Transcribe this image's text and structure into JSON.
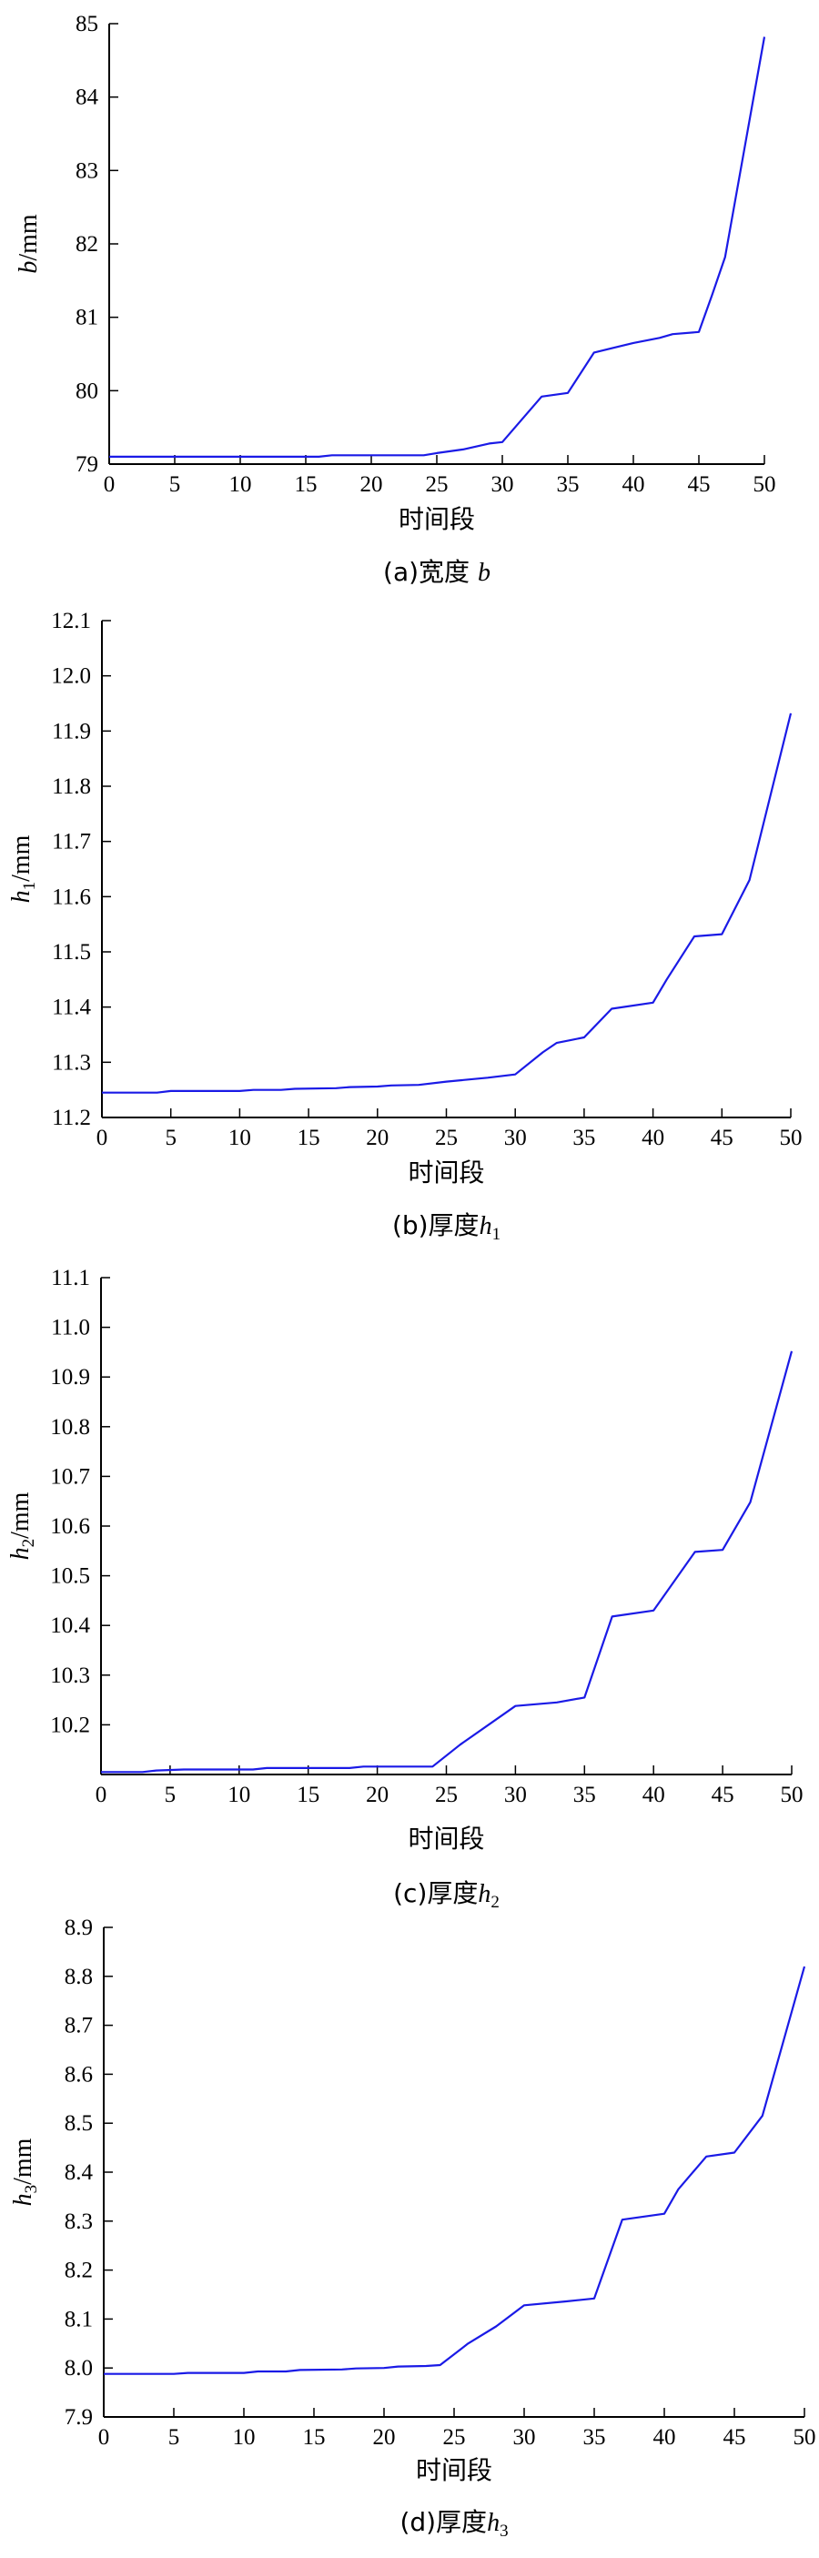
{
  "series_color": "#1a1ae6",
  "chart_data": [
    {
      "type": "line",
      "caption": "(a)宽度 b",
      "caption_prefix": "(a)宽度 ",
      "caption_var": "b",
      "caption_sub": "",
      "xlabel": "时间段",
      "ylabel_var": "b",
      "ylabel_sub": "",
      "ylabel_unit": "/mm",
      "xlim": [
        0,
        50
      ],
      "ylim": [
        79,
        85
      ],
      "xticks": [
        "0",
        "5",
        "10",
        "15",
        "20",
        "25",
        "30",
        "35",
        "40",
        "45",
        "50"
      ],
      "yticks": [
        "79",
        "80",
        "81",
        "82",
        "83",
        "84",
        "85"
      ],
      "x": [
        0,
        5,
        10,
        16,
        17,
        24,
        25,
        27,
        29,
        30,
        33,
        35,
        37,
        40,
        42,
        43,
        45,
        46,
        47,
        50
      ],
      "values": [
        79.1,
        79.1,
        79.1,
        79.1,
        79.12,
        79.12,
        79.15,
        79.2,
        79.28,
        79.3,
        79.92,
        79.97,
        80.52,
        80.65,
        80.72,
        80.77,
        80.8,
        81.3,
        81.82,
        84.82
      ]
    },
    {
      "type": "line",
      "caption": "(b)厚度h1",
      "caption_prefix": "(b)厚度",
      "caption_var": "h",
      "caption_sub": "1",
      "xlabel": "时间段",
      "ylabel_var": "h",
      "ylabel_sub": "1",
      "ylabel_unit": "/mm",
      "xlim": [
        0,
        50
      ],
      "ylim": [
        11.2,
        12.1
      ],
      "xticks": [
        "0",
        "5",
        "10",
        "15",
        "20",
        "25",
        "30",
        "35",
        "40",
        "45",
        "50"
      ],
      "yticks": [
        "11.2",
        "11.3",
        "11.4",
        "11.5",
        "11.6",
        "11.7",
        "11.8",
        "11.9",
        "12.0",
        "12.1"
      ],
      "x": [
        0,
        4,
        5,
        10,
        11,
        13,
        14,
        17,
        18,
        20,
        21,
        23,
        25,
        28,
        30,
        32,
        33,
        35,
        37,
        40,
        41,
        43,
        45,
        47,
        50
      ],
      "values": [
        11.245,
        11.245,
        11.248,
        11.248,
        11.25,
        11.25,
        11.252,
        11.253,
        11.255,
        11.256,
        11.258,
        11.259,
        11.265,
        11.272,
        11.278,
        11.318,
        11.335,
        11.345,
        11.397,
        11.408,
        11.45,
        11.528,
        11.532,
        11.63,
        11.932
      ]
    },
    {
      "type": "line",
      "caption": "(c)厚度h2",
      "caption_prefix": "(c)厚度",
      "caption_var": "h",
      "caption_sub": "2",
      "xlabel": "时间段",
      "ylabel_var": "h",
      "ylabel_sub": "2",
      "ylabel_unit": "/mm",
      "xlim": [
        0,
        50
      ],
      "ylim": [
        10.1,
        11.1
      ],
      "xticks": [
        "0",
        "5",
        "10",
        "15",
        "20",
        "25",
        "30",
        "35",
        "40",
        "45",
        "50"
      ],
      "yticks": [
        "10.2",
        "10.3",
        "10.4",
        "10.5",
        "10.6",
        "10.7",
        "10.8",
        "10.9",
        "11.0",
        "11.1"
      ],
      "x": [
        0,
        3,
        4,
        6,
        11,
        12,
        18,
        19,
        24,
        26,
        30,
        33,
        35,
        37,
        40,
        43,
        45,
        47,
        50
      ],
      "values": [
        10.105,
        10.105,
        10.108,
        10.11,
        10.11,
        10.113,
        10.113,
        10.116,
        10.116,
        10.16,
        10.238,
        10.245,
        10.255,
        10.418,
        10.43,
        10.548,
        10.552,
        10.648,
        10.952
      ]
    },
    {
      "type": "line",
      "caption": "(d)厚度h3",
      "caption_prefix": "(d)厚度",
      "caption_var": "h",
      "caption_sub": "3",
      "xlabel": "时间段",
      "ylabel_var": "h",
      "ylabel_sub": "3",
      "ylabel_unit": "/mm",
      "xlim": [
        0,
        50
      ],
      "ylim": [
        7.9,
        8.9
      ],
      "xticks": [
        "0",
        "5",
        "10",
        "15",
        "20",
        "25",
        "30",
        "35",
        "40",
        "45",
        "50"
      ],
      "yticks": [
        "7.9",
        "8.0",
        "8.1",
        "8.2",
        "8.3",
        "8.4",
        "8.5",
        "8.6",
        "8.7",
        "8.8",
        "8.9"
      ],
      "x": [
        0,
        5,
        6,
        10,
        11,
        13,
        14,
        17,
        18,
        20,
        21,
        23,
        24,
        26,
        28,
        30,
        33,
        35,
        37,
        40,
        41,
        43,
        45,
        47,
        50
      ],
      "values": [
        7.988,
        7.988,
        7.99,
        7.99,
        7.993,
        7.993,
        7.996,
        7.997,
        7.999,
        8.0,
        8.003,
        8.004,
        8.006,
        8.05,
        8.085,
        8.128,
        8.136,
        8.142,
        8.303,
        8.315,
        8.365,
        8.432,
        8.44,
        8.515,
        8.82
      ]
    }
  ]
}
